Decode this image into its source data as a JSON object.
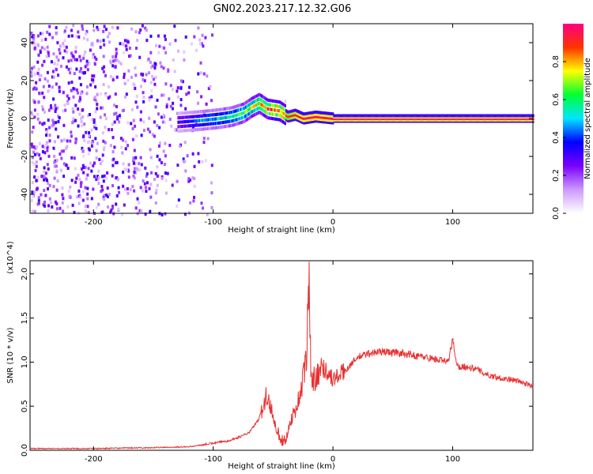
{
  "figure_title": "GN02.2023.217.12.32.G06",
  "chart_data": [
    {
      "type": "heatmap",
      "title": "",
      "xlabel": "Height of straight line (km)",
      "ylabel": "Frequency (Hz)",
      "xlim": [
        -253,
        167
      ],
      "ylim": [
        -50,
        50
      ],
      "x_ticks": [
        -200,
        -100,
        0,
        100
      ],
      "y_ticks": [
        -40,
        -20,
        0,
        20,
        40
      ],
      "colorbar": {
        "label": "Normalized spectral amplitude",
        "range": [
          0,
          1
        ],
        "ticks": [
          0.0,
          0.2,
          0.4,
          0.6,
          0.8
        ],
        "colors": [
          "#ffffff",
          "#cc99ff",
          "#7a00ff",
          "#0000ff",
          "#00e5ff",
          "#00ff33",
          "#ffff00",
          "#ff3300",
          "#ff0080"
        ]
      },
      "ridge": {
        "name": "",
        "x": [
          -130,
          -110,
          -95,
          -85,
          -75,
          -68,
          -62,
          -55,
          -45,
          -38,
          -32,
          -25,
          -15,
          0,
          50,
          100,
          167
        ],
        "freq_hz": [
          -2,
          -1,
          0,
          1,
          3,
          6,
          8,
          5,
          4,
          1,
          2,
          0,
          1,
          0,
          0,
          0,
          0
        ],
        "peak_amplitude": [
          0.3,
          0.45,
          0.5,
          0.55,
          0.6,
          0.7,
          0.75,
          0.85,
          0.9,
          0.9,
          0.95,
          1.0,
          1.0,
          1.0,
          1.0,
          1.0,
          1.0
        ]
      },
      "noise_extent_km": [
        -253,
        -110
      ]
    },
    {
      "type": "line",
      "title": "",
      "xlabel": "Height of straight line (km)",
      "ylabel": "SNR (10 * v/v)",
      "y_multiplier": "(x10^4)",
      "xlim": [
        -253,
        167
      ],
      "ylim": [
        0,
        2.15
      ],
      "x_ticks": [
        -200,
        -100,
        0,
        100
      ],
      "y_ticks": [
        "0.0",
        "0.5",
        "1.0",
        "1.5",
        "2.0"
      ],
      "color": "#e83030",
      "x": [
        -253,
        -200,
        -150,
        -120,
        -100,
        -90,
        -80,
        -70,
        -62,
        -56,
        -52,
        -48,
        -44,
        -40,
        -35,
        -30,
        -25,
        -22,
        -20,
        -18,
        -15,
        -10,
        -5,
        0,
        10,
        20,
        30,
        40,
        50,
        60,
        70,
        80,
        90,
        96,
        100,
        104,
        110,
        120,
        130,
        140,
        150,
        160,
        167
      ],
      "y": [
        0.02,
        0.02,
        0.03,
        0.04,
        0.08,
        0.1,
        0.14,
        0.2,
        0.35,
        0.6,
        0.5,
        0.3,
        0.12,
        0.1,
        0.35,
        0.5,
        0.8,
        1.05,
        2.1,
        0.7,
        0.85,
        0.95,
        0.9,
        0.8,
        0.9,
        1.05,
        1.1,
        1.12,
        1.11,
        1.1,
        1.07,
        1.05,
        1.02,
        1.0,
        1.25,
        0.95,
        0.95,
        0.92,
        0.85,
        0.82,
        0.8,
        0.76,
        0.72
      ]
    }
  ]
}
